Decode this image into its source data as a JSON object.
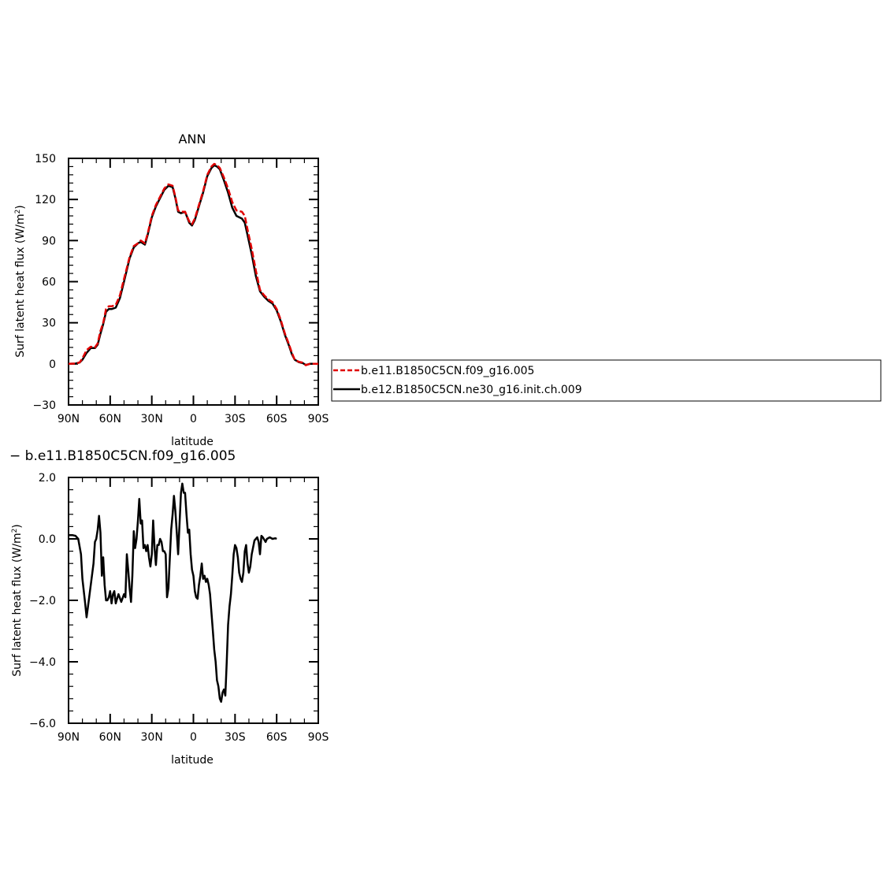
{
  "chart_data": [
    {
      "type": "line",
      "title": "ANN",
      "xlabel": "latitude",
      "ylabel": "Surf latent heat flux (W/m²)",
      "ylabel_parts": {
        "main": "Surf latent heat flux (W/m",
        "sup": "2",
        "end": ")"
      },
      "xlim": [
        90,
        -90
      ],
      "ylim": [
        -30,
        150
      ],
      "x_ticks": [
        90,
        60,
        30,
        0,
        -30,
        -60,
        -90
      ],
      "x_tick_labels": [
        "90N",
        "60N",
        "30N",
        "0",
        "30S",
        "60S",
        "90S"
      ],
      "y_ticks": [
        -30,
        0,
        30,
        60,
        90,
        120,
        150
      ],
      "y_tick_labels": [
        "−30",
        "0",
        "30",
        "60",
        "90",
        "120",
        "150"
      ],
      "legend_placement": "right",
      "series": [
        {
          "name": "b.e11.B1850C5CN.f09_g16.005",
          "color": "#e00000",
          "dash": "dashed",
          "points": [
            [
              90,
              0
            ],
            [
              85,
              0.2
            ],
            [
              82,
              1
            ],
            [
              80,
              4
            ],
            [
              77,
              10
            ],
            [
              74,
              12.5
            ],
            [
              71,
              12
            ],
            [
              69,
              15
            ],
            [
              67,
              24
            ],
            [
              65,
              30
            ],
            [
              63,
              40
            ],
            [
              61,
              42
            ],
            [
              59,
              42
            ],
            [
              56,
              43
            ],
            [
              53,
              50
            ],
            [
              50,
              62
            ],
            [
              46,
              78
            ],
            [
              43,
              86
            ],
            [
              40,
              88
            ],
            [
              38,
              90
            ],
            [
              35,
              88
            ],
            [
              33,
              95
            ],
            [
              30,
              108
            ],
            [
              27,
              116
            ],
            [
              24,
              122
            ],
            [
              21,
              128
            ],
            [
              18,
              131
            ],
            [
              15,
              130
            ],
            [
              13,
              122
            ],
            [
              11,
              112
            ],
            [
              9,
              111
            ],
            [
              6,
              111
            ],
            [
              3,
              104
            ],
            [
              1,
              102
            ],
            [
              -1,
              106
            ],
            [
              -4,
              116
            ],
            [
              -7,
              126
            ],
            [
              -10,
              138
            ],
            [
              -13,
              144
            ],
            [
              -15,
              146
            ],
            [
              -17,
              145
            ],
            [
              -19,
              143
            ],
            [
              -22,
              136
            ],
            [
              -25,
              128
            ],
            [
              -28,
              118
            ],
            [
              -31,
              112
            ],
            [
              -35,
              111
            ],
            [
              -37,
              108
            ],
            [
              -39,
              98
            ],
            [
              -42,
              84
            ],
            [
              -45,
              68
            ],
            [
              -48,
              54
            ],
            [
              -51,
              50
            ],
            [
              -54,
              47
            ],
            [
              -57,
              45
            ],
            [
              -60,
              40
            ],
            [
              -63,
              32
            ],
            [
              -66,
              22
            ],
            [
              -69,
              14
            ],
            [
              -71,
              8
            ],
            [
              -73,
              3
            ],
            [
              -76,
              1.5
            ],
            [
              -79,
              0.8
            ],
            [
              -81,
              -1
            ],
            [
              -84,
              0
            ],
            [
              -87,
              0
            ],
            [
              -90,
              0
            ]
          ]
        },
        {
          "name": "b.e12.B1850C5CN.ne30_g16.init.ch.009",
          "color": "#000000",
          "dash": "solid",
          "points": [
            [
              90,
              0
            ],
            [
              85,
              0.2
            ],
            [
              82,
              1
            ],
            [
              80,
              3
            ],
            [
              77,
              8
            ],
            [
              74,
              11.5
            ],
            [
              71,
              11.5
            ],
            [
              69,
              14
            ],
            [
              67,
              22
            ],
            [
              65,
              29
            ],
            [
              63,
              38
            ],
            [
              61,
              40
            ],
            [
              59,
              40
            ],
            [
              56,
              41
            ],
            [
              53,
              48
            ],
            [
              50,
              60
            ],
            [
              46,
              77
            ],
            [
              43,
              85
            ],
            [
              40,
              88
            ],
            [
              38,
              89
            ],
            [
              35,
              87
            ],
            [
              33,
              94
            ],
            [
              30,
              107
            ],
            [
              27,
              115
            ],
            [
              24,
              121
            ],
            [
              21,
              127
            ],
            [
              18,
              130
            ],
            [
              15,
              129
            ],
            [
              13,
              121
            ],
            [
              11,
              111
            ],
            [
              9,
              110
            ],
            [
              6,
              111
            ],
            [
              3,
              103
            ],
            [
              1,
              101
            ],
            [
              -1,
              105
            ],
            [
              -4,
              115
            ],
            [
              -7,
              125
            ],
            [
              -10,
              137
            ],
            [
              -13,
              143
            ],
            [
              -15,
              145
            ],
            [
              -17,
              144
            ],
            [
              -19,
              142
            ],
            [
              -22,
              134
            ],
            [
              -25,
              125
            ],
            [
              -28,
              114
            ],
            [
              -31,
              108
            ],
            [
              -35,
              106
            ],
            [
              -37,
              103
            ],
            [
              -39,
              94
            ],
            [
              -42,
              80
            ],
            [
              -45,
              64
            ],
            [
              -48,
              53
            ],
            [
              -51,
              49
            ],
            [
              -54,
              46
            ],
            [
              -57,
              44
            ],
            [
              -60,
              39
            ],
            [
              -63,
              31
            ],
            [
              -66,
              21
            ],
            [
              -69,
              13
            ],
            [
              -71,
              7
            ],
            [
              -73,
              3
            ],
            [
              -76,
              1.2
            ],
            [
              -79,
              0.5
            ],
            [
              -81,
              -0.8
            ],
            [
              -84,
              0
            ],
            [
              -87,
              0
            ],
            [
              -90,
              0
            ]
          ]
        }
      ]
    },
    {
      "type": "line",
      "title": "− b.e11.B1850C5CN.f09_g16.005",
      "xlabel": "latitude",
      "ylabel": "Surf latent heat flux (W/m²)",
      "ylabel_parts": {
        "main": "Surf latent heat flux (W/m",
        "sup": "2",
        "end": ")"
      },
      "xlim": [
        90,
        -90
      ],
      "ylim": [
        -6,
        2
      ],
      "x_ticks": [
        90,
        60,
        30,
        0,
        -30,
        -60,
        -90
      ],
      "x_tick_labels": [
        "90N",
        "60N",
        "30N",
        "0",
        "30S",
        "60S",
        "90S"
      ],
      "y_ticks": [
        -6,
        -4,
        -2,
        0,
        2
      ],
      "y_tick_labels": [
        "−6.0",
        "−4.0",
        "−2.0",
        "0.0",
        "2.0"
      ],
      "series": [
        {
          "name": "",
          "color": "#000000",
          "dash": "solid",
          "points": [
            [
              90,
              0.12
            ],
            [
              87,
              0.12
            ],
            [
              85,
              0.1
            ],
            [
              83,
              0
            ],
            [
              81,
              -0.5
            ],
            [
              80,
              -1.3
            ],
            [
              78,
              -2.1
            ],
            [
              77,
              -2.55
            ],
            [
              76,
              -2.2
            ],
            [
              74,
              -1.5
            ],
            [
              72,
              -0.8
            ],
            [
              71,
              -0.1
            ],
            [
              70,
              0
            ],
            [
              69,
              0.3
            ],
            [
              68,
              0.75
            ],
            [
              67,
              0.2
            ],
            [
              66,
              -1.2
            ],
            [
              65,
              -0.6
            ],
            [
              64,
              -1.5
            ],
            [
              63,
              -2.0
            ],
            [
              62,
              -2.0
            ],
            [
              61,
              -1.9
            ],
            [
              60,
              -1.7
            ],
            [
              59,
              -2.1
            ],
            [
              58,
              -1.8
            ],
            [
              57,
              -1.7
            ],
            [
              56,
              -2.1
            ],
            [
              55,
              -1.95
            ],
            [
              54,
              -1.8
            ],
            [
              52,
              -2.05
            ],
            [
              50,
              -1.8
            ],
            [
              49,
              -1.9
            ],
            [
              48,
              -0.5
            ],
            [
              47,
              -1.0
            ],
            [
              46,
              -1.6
            ],
            [
              45,
              -2.05
            ],
            [
              44,
              -1.2
            ],
            [
              43,
              0.25
            ],
            [
              42,
              -0.3
            ],
            [
              41,
              0.0
            ],
            [
              40,
              0.6
            ],
            [
              39,
              1.3
            ],
            [
              38,
              0.5
            ],
            [
              37,
              0.6
            ],
            [
              36,
              -0.3
            ],
            [
              35,
              -0.2
            ],
            [
              34,
              -0.4
            ],
            [
              33,
              -0.2
            ],
            [
              32,
              -0.6
            ],
            [
              31,
              -0.9
            ],
            [
              30,
              -0.5
            ],
            [
              29,
              0.6
            ],
            [
              28,
              -0.3
            ],
            [
              27,
              -0.85
            ],
            [
              26,
              -0.2
            ],
            [
              25,
              -0.2
            ],
            [
              24,
              0.0
            ],
            [
              23,
              -0.1
            ],
            [
              22,
              -0.4
            ],
            [
              21,
              -0.4
            ],
            [
              20,
              -0.5
            ],
            [
              19,
              -1.9
            ],
            [
              18,
              -1.6
            ],
            [
              17,
              -0.6
            ],
            [
              16,
              0.3
            ],
            [
              15,
              0.8
            ],
            [
              14,
              1.4
            ],
            [
              13,
              0.9
            ],
            [
              12,
              0.2
            ],
            [
              11,
              -0.5
            ],
            [
              10,
              0.5
            ],
            [
              9,
              1.5
            ],
            [
              8,
              1.8
            ],
            [
              7,
              1.5
            ],
            [
              6,
              1.5
            ],
            [
              5,
              0.8
            ],
            [
              4,
              0.2
            ],
            [
              3,
              0.3
            ],
            [
              2,
              -0.5
            ],
            [
              1,
              -1.0
            ],
            [
              0,
              -1.2
            ],
            [
              -1,
              -1.7
            ],
            [
              -2,
              -1.9
            ],
            [
              -3,
              -1.95
            ],
            [
              -4,
              -1.5
            ],
            [
              -5,
              -1.2
            ],
            [
              -6,
              -0.8
            ],
            [
              -7,
              -1.3
            ],
            [
              -8,
              -1.2
            ],
            [
              -9,
              -1.4
            ],
            [
              -10,
              -1.3
            ],
            [
              -11,
              -1.5
            ],
            [
              -12,
              -1.8
            ],
            [
              -13,
              -2.4
            ],
            [
              -14,
              -3.0
            ],
            [
              -15,
              -3.6
            ],
            [
              -16,
              -4.0
            ],
            [
              -17,
              -4.6
            ],
            [
              -18,
              -4.8
            ],
            [
              -19,
              -5.2
            ],
            [
              -20,
              -5.3
            ],
            [
              -21,
              -5.0
            ],
            [
              -22,
              -4.9
            ],
            [
              -23,
              -5.1
            ],
            [
              -24,
              -4.0
            ],
            [
              -25,
              -2.8
            ],
            [
              -26,
              -2.2
            ],
            [
              -27,
              -1.8
            ],
            [
              -28,
              -1.2
            ],
            [
              -29,
              -0.5
            ],
            [
              -30,
              -0.2
            ],
            [
              -31,
              -0.3
            ],
            [
              -32,
              -0.6
            ],
            [
              -33,
              -1.1
            ],
            [
              -34,
              -1.3
            ],
            [
              -35,
              -1.4
            ],
            [
              -36,
              -1.1
            ],
            [
              -37,
              -0.4
            ],
            [
              -38,
              -0.2
            ],
            [
              -39,
              -0.8
            ],
            [
              -40,
              -1.1
            ],
            [
              -41,
              -0.9
            ],
            [
              -42,
              -0.5
            ],
            [
              -44,
              -0.05
            ],
            [
              -46,
              0.05
            ],
            [
              -47,
              -0.1
            ],
            [
              -48,
              -0.5
            ],
            [
              -49,
              0.1
            ],
            [
              -50,
              0.05
            ],
            [
              -52,
              -0.1
            ],
            [
              -53,
              0.0
            ],
            [
              -55,
              0.05
            ],
            [
              -57,
              0.0
            ],
            [
              -59,
              0.02
            ],
            [
              -60,
              0.0
            ]
          ]
        }
      ]
    }
  ]
}
